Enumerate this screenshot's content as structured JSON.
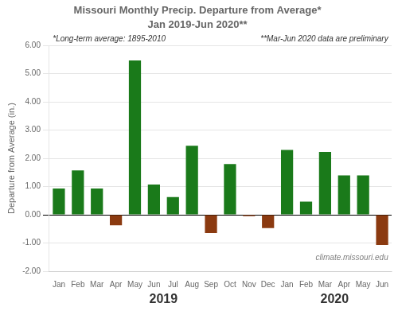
{
  "chart_data": {
    "type": "bar",
    "title": "Missouri Monthly Precip. Departure from Average*",
    "subtitle": "Jan 2019-Jun 2020**",
    "ylabel": "Departure from Average (in.)",
    "notes": [
      "*Long-term average: 1895-2010",
      "**Mar-Jun 2020 data are preliminary"
    ],
    "watermark": "climate.missouri.edu",
    "year_labels": [
      "2019",
      "2020"
    ],
    "categories": [
      "Jan",
      "Feb",
      "Mar",
      "Apr",
      "May",
      "Jun",
      "Jul",
      "Aug",
      "Sep",
      "Oct",
      "Nov",
      "Dec",
      "Jan",
      "Feb",
      "Mar",
      "Apr",
      "May",
      "Jun"
    ],
    "values": [
      0.93,
      1.57,
      0.93,
      -0.37,
      5.47,
      1.07,
      0.63,
      2.45,
      -0.65,
      1.8,
      -0.05,
      -0.47,
      2.3,
      0.47,
      2.23,
      1.4,
      1.4,
      -1.07
    ],
    "colors": [
      "#1a7a1a",
      "#1a7a1a",
      "#1a7a1a",
      "#8b3a10",
      "#1a7a1a",
      "#1a7a1a",
      "#1a7a1a",
      "#1a7a1a",
      "#8b3a10",
      "#1a7a1a",
      "#8b3a10",
      "#8b3a10",
      "#1a7a1a",
      "#1a7a1a",
      "#1a7a1a",
      "#1a7a1a",
      "#1a7a1a",
      "#8b3a10"
    ],
    "ylim": [
      -2.0,
      6.0
    ],
    "yticks": [
      {
        "value": -2.0,
        "label": "-2.00"
      },
      {
        "value": -1.0,
        "label": "-1.00"
      },
      {
        "value": 0.0,
        "label": "0.00"
      },
      {
        "value": 1.0,
        "label": "1.00"
      },
      {
        "value": 2.0,
        "label": "2.00"
      },
      {
        "value": 3.0,
        "label": "3.00"
      },
      {
        "value": 4.0,
        "label": "4.00"
      },
      {
        "value": 5.0,
        "label": "5.00"
      },
      {
        "value": 6.0,
        "label": "6.00"
      }
    ],
    "grid": true
  }
}
